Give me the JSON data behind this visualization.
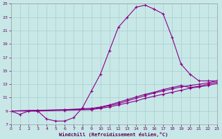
{
  "xlabel": "Windchill (Refroidissement éolien,°C)",
  "background_color": "#c8e8e8",
  "grid_color": "#aacccc",
  "line_color": "#880088",
  "xlim": [
    0,
    23
  ],
  "ylim": [
    7,
    25
  ],
  "yticks": [
    7,
    9,
    11,
    13,
    15,
    17,
    19,
    21,
    23,
    25
  ],
  "xticks": [
    0,
    1,
    2,
    3,
    4,
    5,
    6,
    7,
    8,
    9,
    10,
    11,
    12,
    13,
    14,
    15,
    16,
    17,
    18,
    19,
    20,
    21,
    22,
    23
  ],
  "curve_main": {
    "x": [
      0,
      1,
      2,
      3,
      4,
      5,
      6,
      7,
      8,
      9,
      10,
      11,
      12,
      13,
      14,
      15,
      16,
      17,
      18,
      19,
      20,
      21,
      22,
      23
    ],
    "y": [
      9.0,
      8.5,
      9.0,
      9.0,
      7.8,
      7.5,
      7.5,
      8.0,
      9.5,
      12.0,
      14.5,
      18.0,
      21.5,
      23.0,
      24.5,
      24.8,
      24.2,
      23.5,
      20.0,
      16.0,
      14.5,
      13.5,
      13.5,
      13.5
    ]
  },
  "flat_lines": [
    {
      "x": [
        0,
        3,
        6,
        9,
        10,
        11,
        12,
        13,
        14,
        15,
        16,
        17,
        18,
        19,
        20,
        21,
        22,
        23
      ],
      "y": [
        9.0,
        9.1,
        9.2,
        9.4,
        9.6,
        9.9,
        10.3,
        10.7,
        11.1,
        11.5,
        11.8,
        12.2,
        12.5,
        12.8,
        12.5,
        12.7,
        13.0,
        13.3
      ]
    },
    {
      "x": [
        0,
        3,
        6,
        9,
        10,
        11,
        12,
        13,
        14,
        15,
        16,
        17,
        18,
        19,
        20,
        21,
        22,
        23
      ],
      "y": [
        9.0,
        9.1,
        9.15,
        9.3,
        9.5,
        9.8,
        10.1,
        10.5,
        10.9,
        11.3,
        11.7,
        12.0,
        12.3,
        12.6,
        12.8,
        13.0,
        13.2,
        13.5
      ]
    },
    {
      "x": [
        0,
        3,
        6,
        9,
        10,
        11,
        12,
        13,
        14,
        15,
        16,
        17,
        18,
        19,
        20,
        21,
        22,
        23
      ],
      "y": [
        9.0,
        9.0,
        9.1,
        9.2,
        9.4,
        9.6,
        9.9,
        10.2,
        10.5,
        10.9,
        11.2,
        11.5,
        11.8,
        12.1,
        12.4,
        12.6,
        12.8,
        13.1
      ]
    }
  ]
}
